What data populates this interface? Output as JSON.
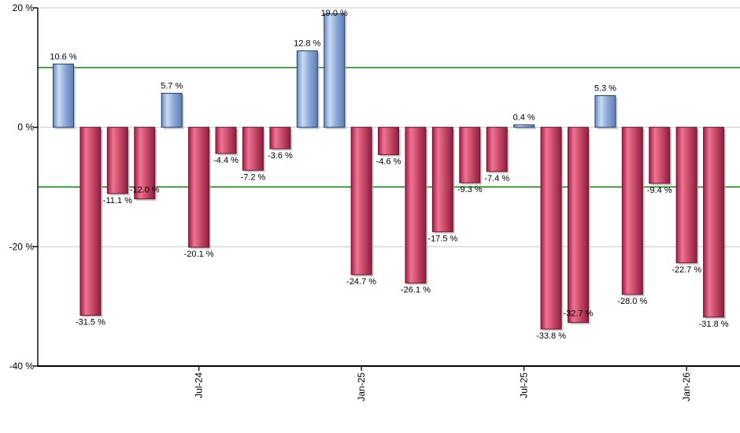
{
  "chart_data": {
    "type": "bar",
    "title": "",
    "xlabel": "",
    "ylabel": "",
    "unit": "%",
    "ylim": [
      -40,
      20
    ],
    "grid": true,
    "legend": "none",
    "y_ticks": [
      {
        "value": 20,
        "label": "20 %"
      },
      {
        "value": 0,
        "label": "0 %"
      },
      {
        "value": -20,
        "label": "-20 %"
      },
      {
        "value": -40,
        "label": "-40 %"
      }
    ],
    "x_ticks": [
      {
        "bar_index": 5,
        "label": "Jul-24"
      },
      {
        "bar_index": 11,
        "label": "Jan-25"
      },
      {
        "bar_index": 17,
        "label": "Jul-25"
      },
      {
        "bar_index": 23,
        "label": "Jan-26"
      }
    ],
    "reference_lines": [
      10,
      -10
    ],
    "bars": [
      {
        "value": 10.6,
        "label": "10.6 %"
      },
      {
        "value": -31.5,
        "label": "-31.5 %"
      },
      {
        "value": -11.1,
        "label": "-11.1 %"
      },
      {
        "value": -12.0,
        "label": "-12.0 %"
      },
      {
        "value": 5.7,
        "label": "5.7 %"
      },
      {
        "value": -20.1,
        "label": "-20.1 %"
      },
      {
        "value": -4.4,
        "label": "-4.4 %"
      },
      {
        "value": -7.2,
        "label": "-7.2 %"
      },
      {
        "value": -3.6,
        "label": "-3.6 %"
      },
      {
        "value": 12.8,
        "label": "12.8 %"
      },
      {
        "value": 19.0,
        "label": "19.0 %"
      },
      {
        "value": -24.7,
        "label": "-24.7 %"
      },
      {
        "value": -4.6,
        "label": "-4.6 %"
      },
      {
        "value": -26.1,
        "label": "-26.1 %"
      },
      {
        "value": -17.5,
        "label": "-17.5 %"
      },
      {
        "value": -9.3,
        "label": "-9.3 %"
      },
      {
        "value": -7.4,
        "label": "-7.4 %"
      },
      {
        "value": 0.4,
        "label": "0.4 %"
      },
      {
        "value": -33.8,
        "label": "-33.8 %"
      },
      {
        "value": -32.7,
        "label": "-32.7 %"
      },
      {
        "value": 5.3,
        "label": "5.3 %"
      },
      {
        "value": -28.0,
        "label": "-28.0 %"
      },
      {
        "value": -9.4,
        "label": "-9.4 %"
      },
      {
        "value": -22.7,
        "label": "-22.7 %"
      },
      {
        "value": -31.8,
        "label": "-31.8 %"
      }
    ],
    "colors": {
      "positive_border": "#1e3f70",
      "positive_gradient": [
        "#6b8abf",
        "#c9dcf4",
        "#8ca8d6",
        "#5e7fb5"
      ],
      "negative_border": "#70132f",
      "negative_gradient": [
        "#9c2045",
        "#ef7394",
        "#c84a68",
        "#8f1c40"
      ],
      "reference_line": "#007f00",
      "grid_line": "#c8c8c8",
      "axis_line": "#000000",
      "text": "#000000",
      "shadow": "#b5b5b5",
      "background": "#ffffff"
    }
  }
}
